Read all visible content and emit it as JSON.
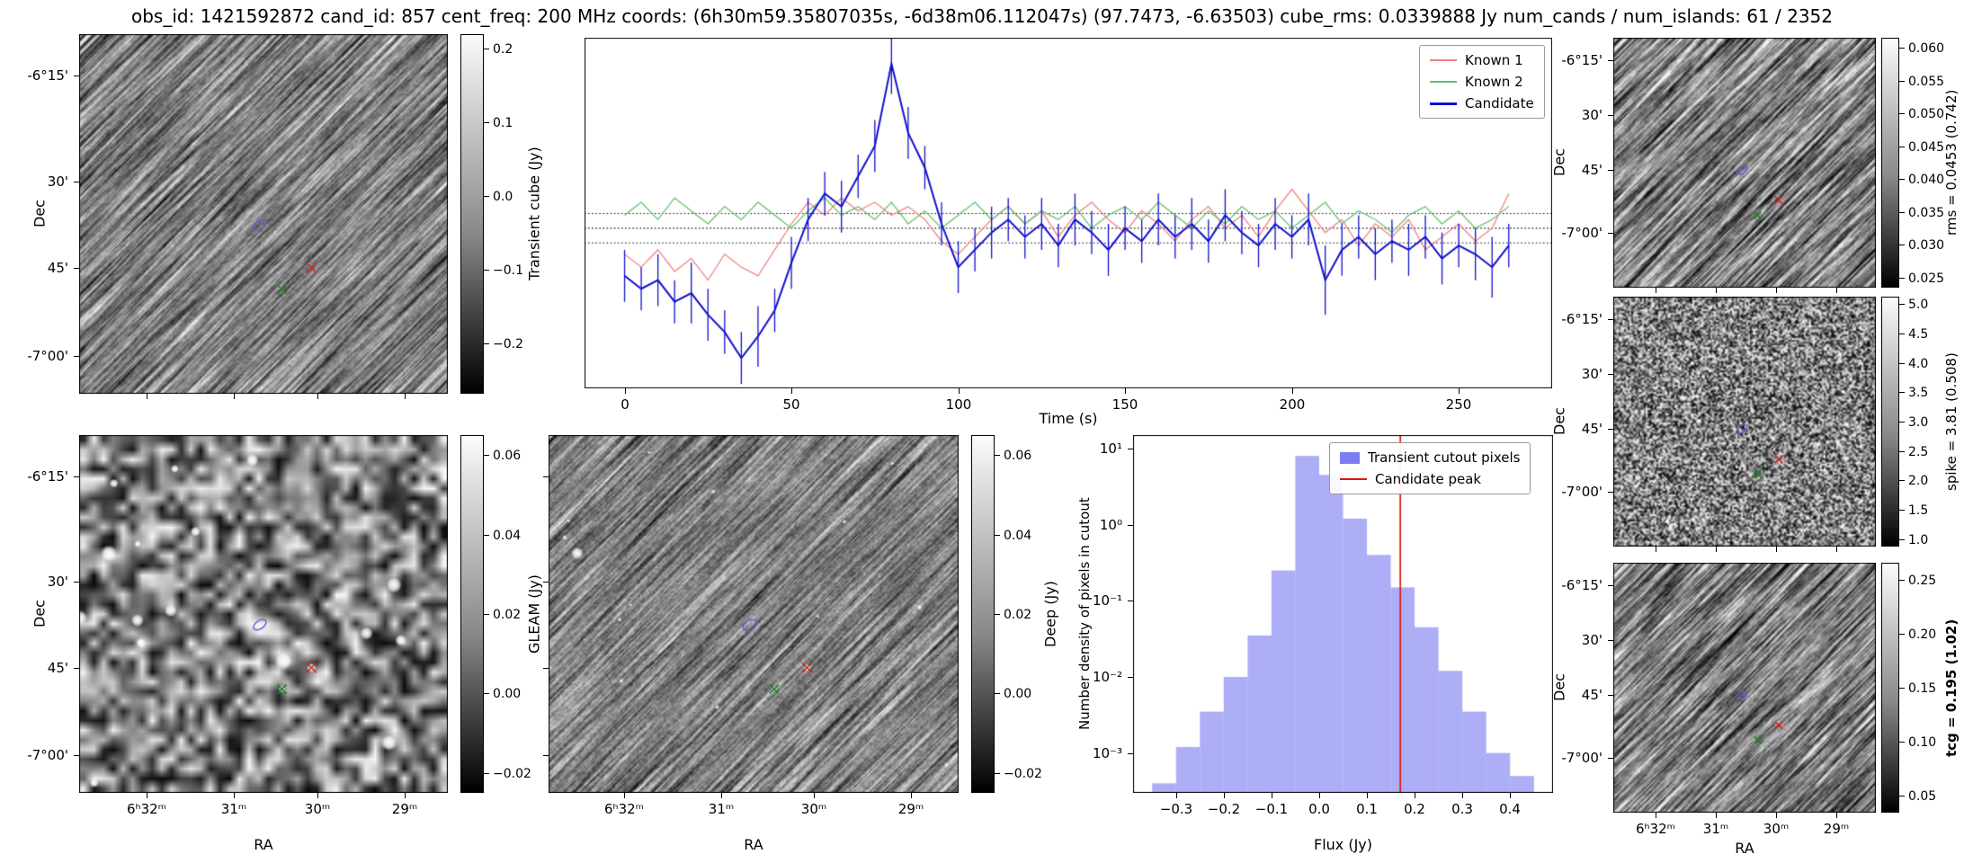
{
  "title": "obs_id: 1421592872 cand_id: 857 cent_freq: 200 MHz coords: (6h30m59.35807035s, -6d38m06.112047s) (97.7473, -6.63503) cube_rms: 0.0339888 Jy num_cands / num_islands: 61 / 2352",
  "axes": {
    "dec_label": "Dec",
    "ra_label": "RA",
    "dec_ticks": [
      "-6°15'",
      "30'",
      "45'",
      "-7°00'"
    ],
    "ra_ticks": [
      "6ʰ32ᵐ",
      "31ᵐ",
      "30ᵐ",
      "29ᵐ"
    ]
  },
  "colorbars": {
    "transient_cube": {
      "label": "Transient cube (Jy)",
      "ticks": [
        "0.2",
        "0.1",
        "0.0",
        "−0.1",
        "−0.2"
      ]
    },
    "gleam": {
      "label": "GLEAM (Jy)",
      "ticks": [
        "0.06",
        "0.04",
        "0.02",
        "0.00",
        "−0.02"
      ]
    },
    "deep": {
      "label": "Deep (Jy)",
      "ticks": [
        "0.06",
        "0.04",
        "0.02",
        "0.00",
        "−0.02"
      ]
    },
    "rms": {
      "label": "rms = 0.0453 (0.742)",
      "ticks": [
        "0.060",
        "0.055",
        "0.050",
        "0.045",
        "0.040",
        "0.035",
        "0.030",
        "0.025"
      ]
    },
    "spike": {
      "label": "spike = 3.81 (0.508)",
      "ticks": [
        "5.0",
        "4.5",
        "4.0",
        "3.5",
        "3.0",
        "2.5",
        "2.0",
        "1.5",
        "1.0"
      ]
    },
    "tcg": {
      "label": "tcg = 0.195 (1.02)",
      "bold": true,
      "ticks": [
        "0.25",
        "0.20",
        "0.15",
        "0.10",
        "0.05"
      ]
    }
  },
  "markers": {
    "candidate_region": {
      "shape": "ellipse",
      "fx": 0.49,
      "fy": 0.53,
      "color": "#5a5ad0"
    },
    "known_source_1": {
      "shape": "x",
      "fx": 0.63,
      "fy": 0.65,
      "color": "#cc2222"
    },
    "known_source_2": {
      "shape": "x",
      "fx": 0.55,
      "fy": 0.71,
      "color": "#1e7d1e"
    }
  },
  "chart_data": [
    {
      "type": "line",
      "title": "",
      "xlabel": "Time (s)",
      "ylabel": "",
      "xlim": [
        -12,
        278
      ],
      "ylim": [
        -0.37,
        0.44
      ],
      "xtick_values": [
        0,
        50,
        100,
        150,
        200,
        250
      ],
      "xtick_labels": [
        "0",
        "50",
        "100",
        "150",
        "200",
        "250"
      ],
      "hlines": [
        -0.034,
        0.0,
        0.034
      ],
      "hline_style": "dotted",
      "legend_position": "upper right",
      "x": [
        0,
        5,
        10,
        15,
        20,
        25,
        30,
        35,
        40,
        45,
        50,
        55,
        60,
        65,
        70,
        75,
        80,
        85,
        90,
        95,
        100,
        105,
        110,
        115,
        120,
        125,
        130,
        135,
        140,
        145,
        150,
        155,
        160,
        165,
        170,
        175,
        180,
        185,
        190,
        195,
        200,
        205,
        210,
        215,
        220,
        225,
        230,
        235,
        240,
        245,
        250,
        255,
        260,
        265
      ],
      "series": [
        {
          "name": "Known 1",
          "color": "#f28080",
          "values": [
            -0.06,
            -0.09,
            -0.05,
            -0.1,
            -0.07,
            -0.12,
            -0.06,
            -0.09,
            -0.11,
            -0.05,
            0.01,
            0.06,
            0.03,
            0.07,
            0.04,
            0.06,
            0.03,
            0.05,
            0.02,
            -0.03,
            -0.06,
            -0.02,
            0.02,
            0.05,
            0.01,
            0.04,
            -0.02,
            0.03,
            0.06,
            0.02,
            -0.01,
            0.04,
            0.01,
            -0.03,
            0.02,
            0.05,
            0.0,
            0.03,
            -0.02,
            0.04,
            0.09,
            0.04,
            -0.01,
            0.02,
            -0.04,
            0.01,
            -0.02,
            0.02,
            -0.05,
            -0.02,
            0.01,
            -0.03,
            0.0,
            0.08
          ]
        },
        {
          "name": "Known 2",
          "color": "#67bf6b",
          "values": [
            0.03,
            0.06,
            0.02,
            0.07,
            0.04,
            0.01,
            0.05,
            0.02,
            0.06,
            0.03,
            0.0,
            0.04,
            0.07,
            0.03,
            0.05,
            0.02,
            0.06,
            0.01,
            0.04,
            0.0,
            0.03,
            0.06,
            0.02,
            0.05,
            0.01,
            0.04,
            0.02,
            0.05,
            0.0,
            0.03,
            0.05,
            0.02,
            0.06,
            0.03,
            0.0,
            0.04,
            0.01,
            0.05,
            0.02,
            0.04,
            0.0,
            0.03,
            0.06,
            0.01,
            0.04,
            0.02,
            -0.01,
            0.03,
            0.05,
            0.01,
            0.04,
            0.0,
            0.02,
            0.05
          ]
        },
        {
          "name": "Candidate",
          "color": "#1111cc",
          "values": [
            -0.11,
            -0.14,
            -0.12,
            -0.17,
            -0.15,
            -0.2,
            -0.24,
            -0.3,
            -0.25,
            -0.19,
            -0.08,
            0.02,
            0.08,
            0.05,
            0.12,
            0.19,
            0.38,
            0.22,
            0.14,
            0.01,
            -0.09,
            -0.05,
            -0.01,
            0.02,
            -0.02,
            0.01,
            -0.04,
            0.02,
            -0.01,
            -0.05,
            0.0,
            -0.03,
            0.02,
            -0.02,
            0.01,
            -0.03,
            0.03,
            -0.01,
            -0.04,
            0.01,
            -0.02,
            0.02,
            -0.12,
            -0.05,
            -0.02,
            -0.06,
            -0.03,
            -0.05,
            -0.02,
            -0.07,
            -0.04,
            -0.06,
            -0.09,
            -0.04
          ],
          "errors": [
            0.06,
            0.05,
            0.06,
            0.05,
            0.07,
            0.06,
            0.05,
            0.06,
            0.07,
            0.05,
            0.06,
            0.05,
            0.05,
            0.06,
            0.05,
            0.06,
            0.07,
            0.06,
            0.05,
            0.05,
            0.06,
            0.05,
            0.06,
            0.05,
            0.05,
            0.06,
            0.05,
            0.06,
            0.05,
            0.06,
            0.05,
            0.05,
            0.06,
            0.05,
            0.06,
            0.05,
            0.06,
            0.05,
            0.05,
            0.06,
            0.05,
            0.06,
            0.08,
            0.06,
            0.05,
            0.06,
            0.05,
            0.06,
            0.05,
            0.06,
            0.05,
            0.06,
            0.07,
            0.05
          ]
        }
      ]
    },
    {
      "type": "histogram",
      "title": "",
      "xlabel": "Flux (Jy)",
      "ylabel": "Number density of pixels in cutout",
      "xlim": [
        -0.39,
        0.49
      ],
      "ylog": true,
      "ylim": [
        0.0003,
        15
      ],
      "xtick_values": [
        -0.3,
        -0.2,
        -0.1,
        0.0,
        0.1,
        0.2,
        0.3,
        0.4
      ],
      "xtick_labels": [
        "−0.3",
        "−0.2",
        "−0.1",
        "0.0",
        "0.1",
        "0.2",
        "0.3",
        "0.4"
      ],
      "ytick_values": [
        10,
        1,
        0.1,
        0.01,
        0.001
      ],
      "ytick_labels": [
        "10¹",
        "10⁰",
        "10⁻¹",
        "10⁻²",
        "10⁻³"
      ],
      "bin_edges": [
        -0.35,
        -0.3,
        -0.25,
        -0.2,
        -0.15,
        -0.1,
        -0.05,
        0.0,
        0.05,
        0.1,
        0.15,
        0.2,
        0.25,
        0.3,
        0.35,
        0.4,
        0.45
      ],
      "densities": [
        0.0004,
        0.0012,
        0.0035,
        0.01,
        0.035,
        0.25,
        8.0,
        4.5,
        1.2,
        0.4,
        0.15,
        0.045,
        0.012,
        0.0035,
        0.001,
        0.0005
      ],
      "candidate_peak": 0.17,
      "fill_color": "#7d7df2",
      "line_color": "#e11414",
      "legend": [
        "Transient cutout pixels",
        "Candidate peak"
      ],
      "legend_position": "upper right"
    }
  ]
}
